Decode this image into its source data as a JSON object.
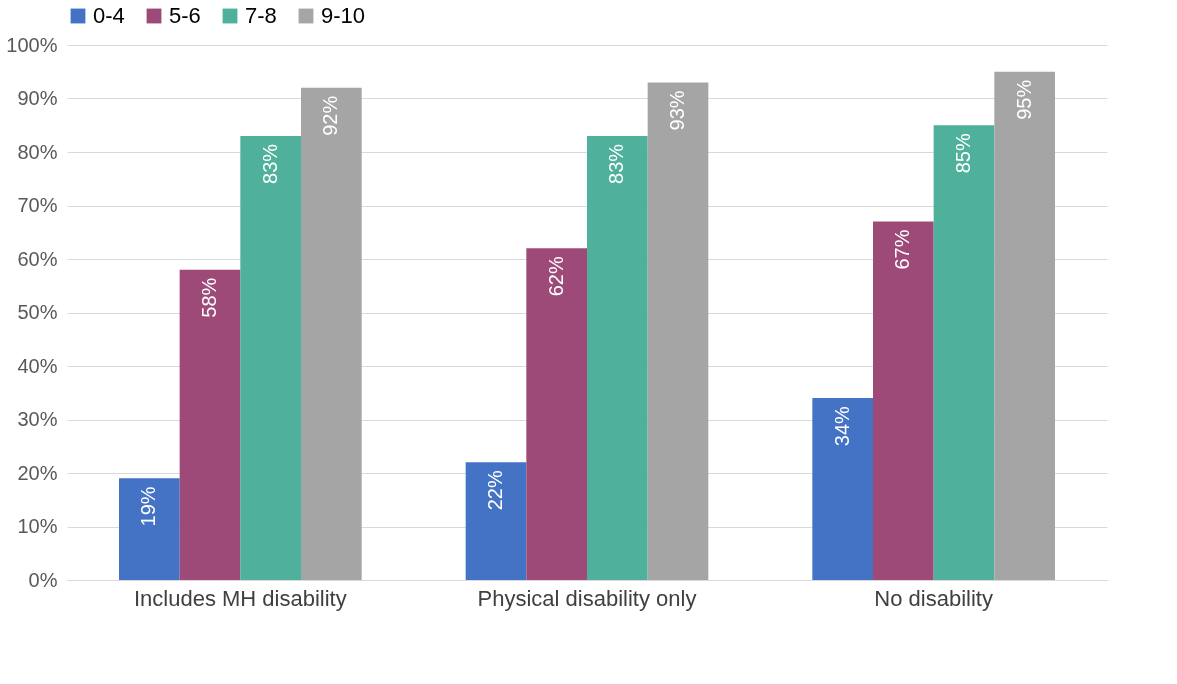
{
  "chart_data": {
    "type": "bar",
    "categories": [
      "Includes MH disability",
      "Physical disability only",
      "No disability"
    ],
    "series": [
      {
        "name": "0-4",
        "color": "#4472c4",
        "values": [
          19,
          22,
          34
        ],
        "value_labels": [
          "19%",
          "22%",
          "34%"
        ]
      },
      {
        "name": "5-6",
        "color": "#9e4a78",
        "values": [
          58,
          62,
          67
        ],
        "value_labels": [
          "58%",
          "62%",
          "67%"
        ]
      },
      {
        "name": "7-8",
        "color": "#4fb09c",
        "values": [
          83,
          83,
          85
        ],
        "value_labels": [
          "83%",
          "83%",
          "85%"
        ]
      },
      {
        "name": "9-10",
        "color": "#a5a5a5",
        "values": [
          92,
          93,
          95
        ],
        "value_labels": [
          "92%",
          "93%",
          "95%"
        ]
      }
    ],
    "ylim": [
      0,
      100
    ],
    "yticks": [
      {
        "value": 0,
        "label": "0%"
      },
      {
        "value": 10,
        "label": "10%"
      },
      {
        "value": 20,
        "label": "20%"
      },
      {
        "value": 30,
        "label": "30%"
      },
      {
        "value": 40,
        "label": "40%"
      },
      {
        "value": 50,
        "label": "50%"
      },
      {
        "value": 60,
        "label": "60%"
      },
      {
        "value": 70,
        "label": "70%"
      },
      {
        "value": 80,
        "label": "80%"
      },
      {
        "value": 90,
        "label": "90%"
      },
      {
        "value": 100,
        "label": "100%"
      }
    ],
    "grid": "y",
    "legend": "top"
  }
}
